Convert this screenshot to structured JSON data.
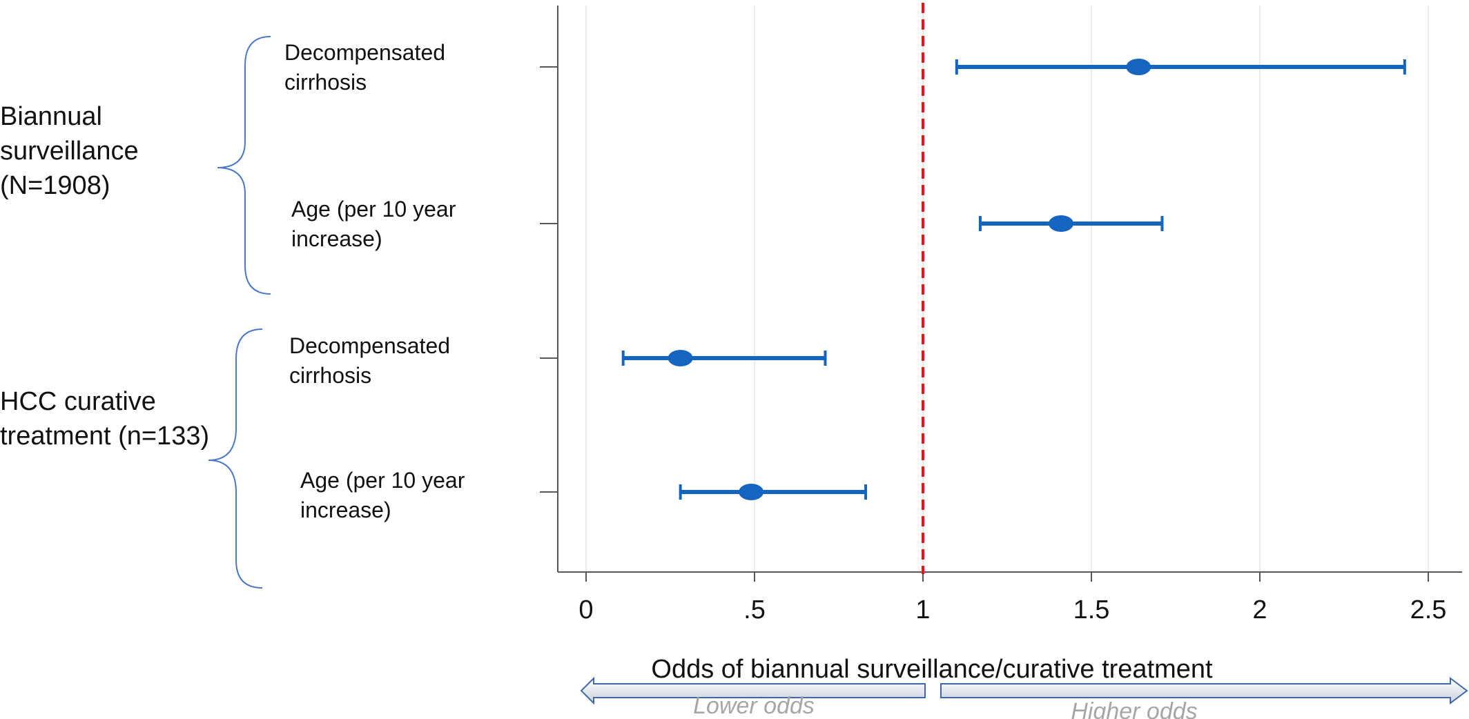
{
  "chart_data": {
    "type": "forest",
    "groups": [
      {
        "label_lines": [
          "Biannual",
          "surveillance",
          "(N=1908)"
        ]
      },
      {
        "label_lines": [
          "HCC curative",
          "treatment (n=133)"
        ]
      }
    ],
    "rows": [
      {
        "label_lines": [
          "Decompensated",
          "cirrhosis"
        ],
        "estimate": 1.64,
        "ci_low": 1.1,
        "ci_high": 2.43
      },
      {
        "label_lines": [
          "Age (per 10 year",
          "increase)"
        ],
        "estimate": 1.41,
        "ci_low": 1.17,
        "ci_high": 1.71
      },
      {
        "label_lines": [
          "Decompensated",
          "cirrhosis"
        ],
        "estimate": 0.28,
        "ci_low": 0.11,
        "ci_high": 0.71
      },
      {
        "label_lines": [
          "Age (per 10 year",
          "increase)"
        ],
        "estimate": 0.49,
        "ci_low": 0.28,
        "ci_high": 0.83
      }
    ],
    "xticks": [
      0,
      0.5,
      1,
      1.5,
      2,
      2.5
    ],
    "xtick_labels": [
      "0",
      ".5",
      "1",
      "1.5",
      "2",
      "2.5"
    ],
    "xlim": [
      -0.08,
      2.58
    ],
    "reference_line": 1,
    "xlabel": "Odds of biannual  surveillance/curative treatment",
    "arrow_left_label": "Lower odds",
    "arrow_right_label": "Higher odds",
    "grid": "vertical",
    "colors": {
      "point": "#1565c0",
      "reference": "#e8141c",
      "xlabel": "#e8141c",
      "bracket": "#4a78c8",
      "arrow_text": "#a6a6a6"
    }
  }
}
